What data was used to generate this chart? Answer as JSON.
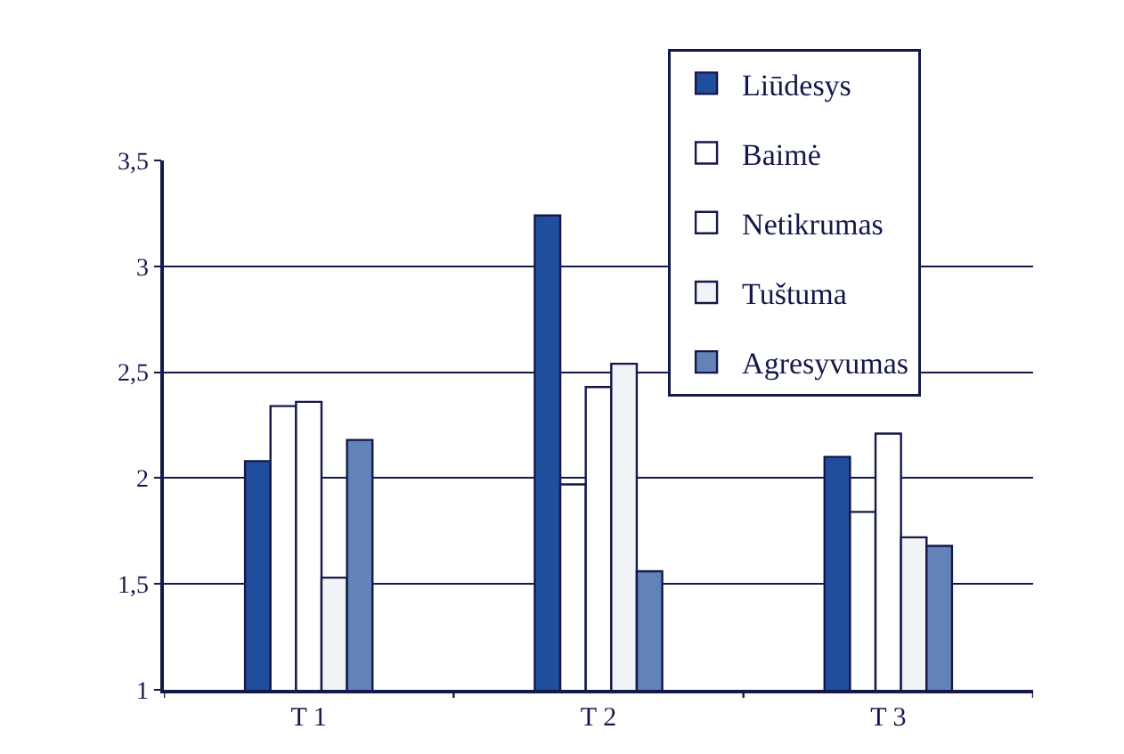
{
  "chart_data": {
    "type": "bar",
    "categories": [
      "T 1",
      "T 2",
      "T 3"
    ],
    "series": [
      {
        "name": "Liūdesys",
        "color": "#1f4f9c",
        "values": [
          2.08,
          3.24,
          2.1
        ]
      },
      {
        "name": "Baimė",
        "color": "#ffffff",
        "values": [
          2.34,
          1.97,
          1.84
        ]
      },
      {
        "name": "Netikrumas",
        "color": "#ffffff",
        "values": [
          2.36,
          2.43,
          2.21
        ]
      },
      {
        "name": "Tuštuma",
        "color": "#f2f3f7",
        "values": [
          1.53,
          2.54,
          1.72
        ]
      },
      {
        "name": "Agresyvumas",
        "color": "#6383b8",
        "values": [
          2.18,
          1.56,
          1.68
        ]
      }
    ],
    "ylim": [
      1,
      3.5
    ],
    "yticks": [
      1,
      {
        "value": 1.5,
        "label": "1,5"
      },
      2,
      {
        "value": 2.5,
        "label": "2,5"
      },
      3,
      {
        "value": 3.5,
        "label": "3,5"
      }
    ],
    "grid": "y",
    "legend": "top right"
  }
}
